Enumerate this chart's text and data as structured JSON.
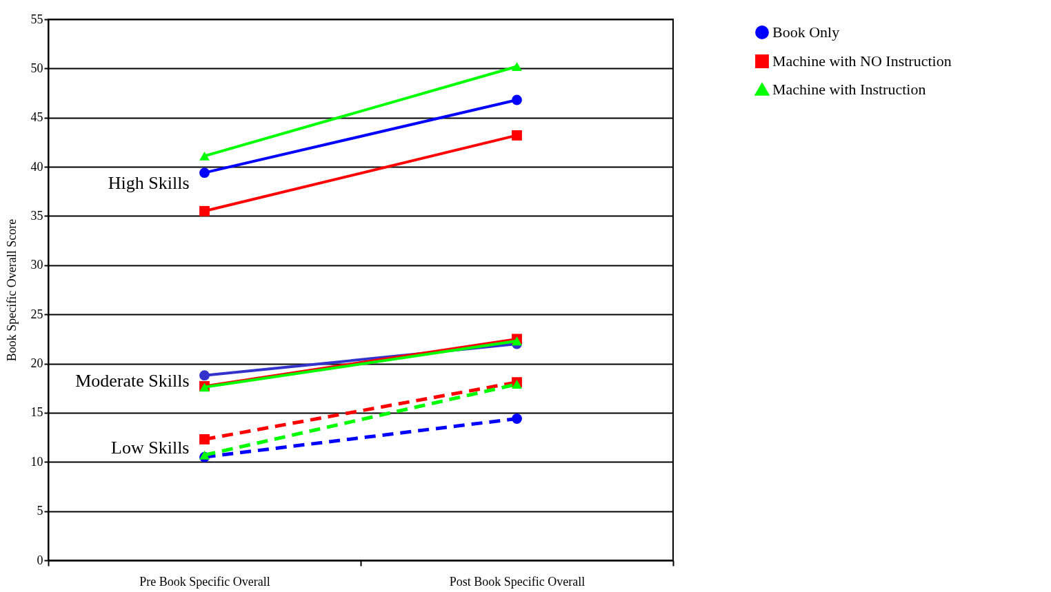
{
  "chart_data": {
    "type": "line",
    "ylabel": "Book Specific Overall Score",
    "categories": [
      "Pre Book Specific Overall",
      "Post Book Specific Overall"
    ],
    "ylim": [
      0,
      55
    ],
    "yticks": [
      0,
      5,
      10,
      15,
      20,
      25,
      30,
      35,
      40,
      45,
      50,
      55
    ],
    "grid": "y",
    "legend": "right",
    "series": [
      {
        "name": "Book Only",
        "color": "#0000ff",
        "marker": "circle",
        "line_style": "solid",
        "values": [
          39.4,
          46.8
        ]
      },
      {
        "name": "Machine with NO Instruction",
        "color": "#ff0000",
        "marker": "square",
        "line_style": "solid",
        "values": [
          35.5,
          43.2
        ]
      },
      {
        "name": "Machine with Instruction",
        "color": "#00ff00",
        "marker": "triangle",
        "line_style": "solid",
        "values": [
          41.1,
          50.2
        ]
      },
      {
        "color": "#3333cc",
        "marker": "circle",
        "line_style": "solid",
        "values": [
          18.8,
          22.0
        ]
      },
      {
        "color": "#ff0000",
        "marker": "square",
        "line_style": "solid",
        "values": [
          17.7,
          22.5
        ]
      },
      {
        "color": "#00ff00",
        "marker": "triangle",
        "line_style": "solid",
        "values": [
          17.6,
          22.3
        ]
      },
      {
        "color": "#0000ff",
        "marker": "circle",
        "line_style": "dashed",
        "values": [
          10.5,
          14.4
        ]
      },
      {
        "color": "#ff0000",
        "marker": "square",
        "line_style": "dashed",
        "values": [
          12.3,
          18.1
        ]
      },
      {
        "color": "#00ff00",
        "marker": "triangle",
        "line_style": "dashed",
        "values": [
          10.7,
          17.9
        ]
      }
    ],
    "annotations": [
      "High Skills",
      "Moderate Skills",
      "Low Skills"
    ]
  }
}
